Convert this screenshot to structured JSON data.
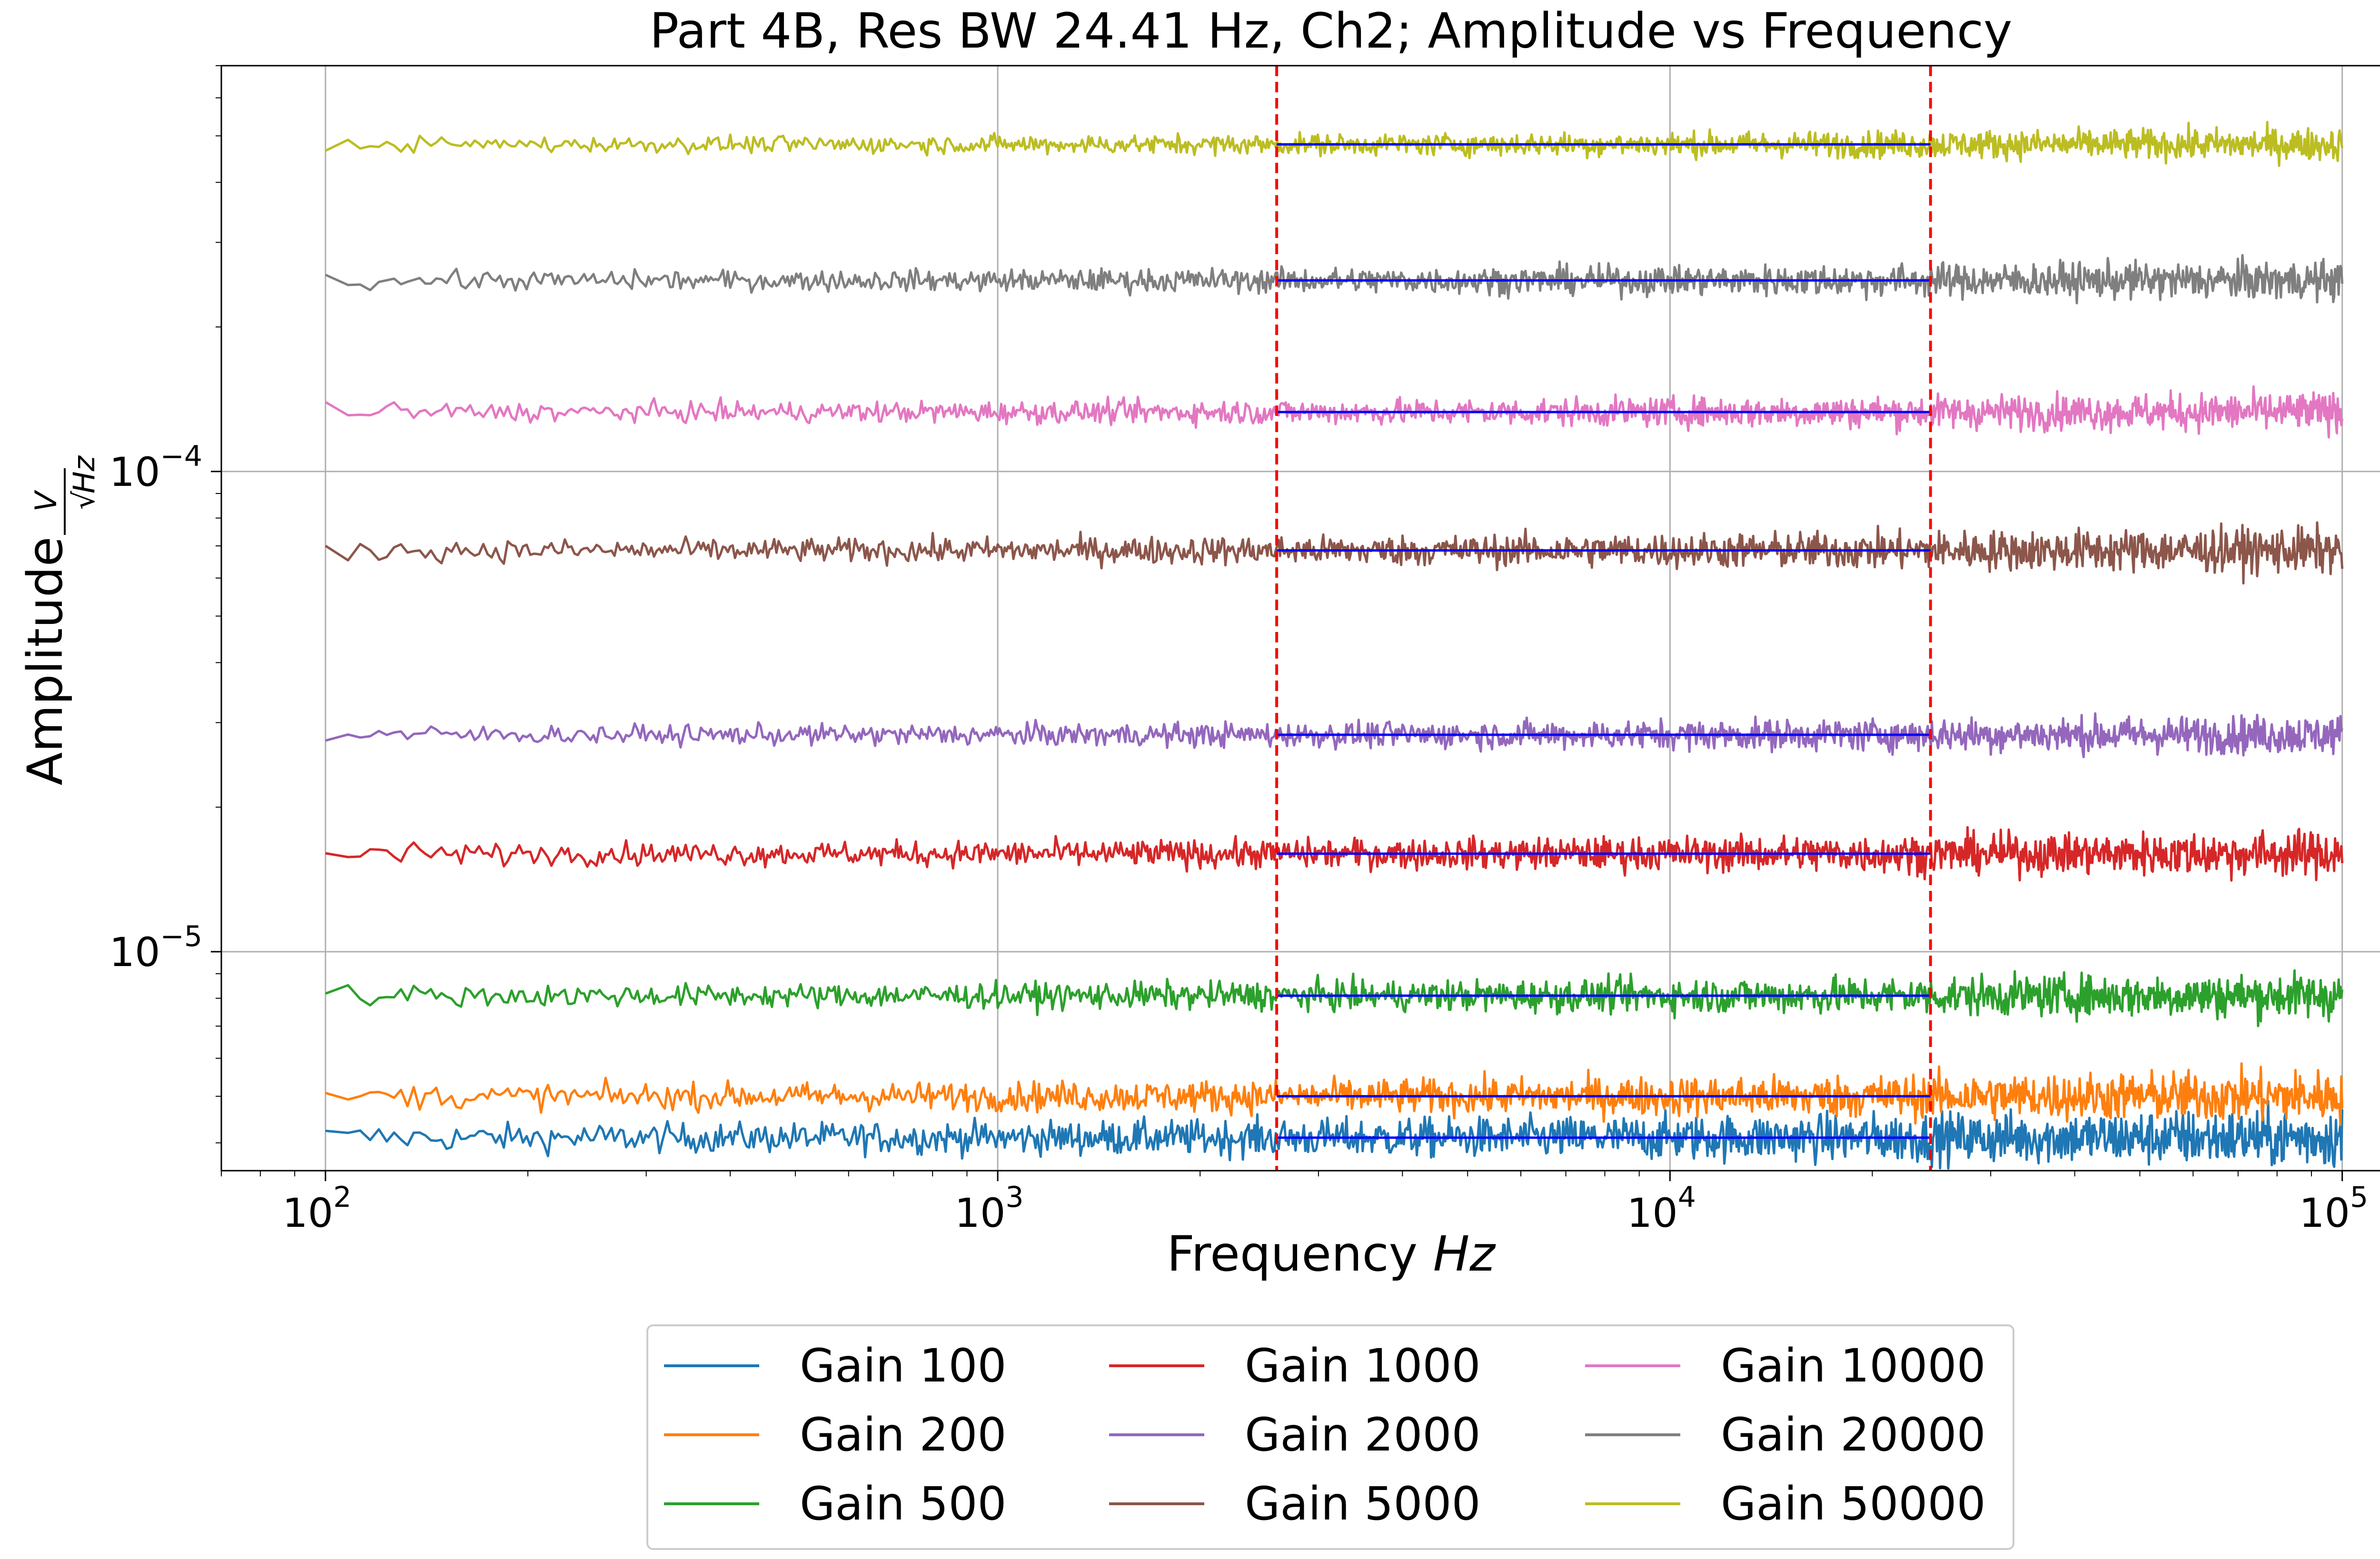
{
  "chart_data": {
    "type": "line",
    "title": "Part 4B, Res BW 24.41 Hz, Ch2; Amplitude vs Frequency",
    "xlabel": "Frequency",
    "xlabel_unit": "Hz",
    "ylabel": "Amplitude",
    "ylabel_unit_numerator": "V",
    "ylabel_unit_denominator": "Hz",
    "x_scale": "log",
    "y_scale": "log",
    "xlim": [
      70,
      140000
    ],
    "ylim": [
      3.5e-06,
      0.0007
    ],
    "x_ticks": [
      {
        "value": 100,
        "base": "10",
        "exp": "2"
      },
      {
        "value": 1000,
        "base": "10",
        "exp": "3"
      },
      {
        "value": 10000,
        "base": "10",
        "exp": "4"
      },
      {
        "value": 100000,
        "base": "10",
        "exp": "5"
      }
    ],
    "y_ticks": [
      {
        "value": 1e-05,
        "base": "10",
        "exp": "−5"
      },
      {
        "value": 0.0001,
        "base": "10",
        "exp": "−4"
      }
    ],
    "grid": true,
    "legend_position": "bottom-center",
    "x_range": [
      100,
      100000
    ],
    "vlines": [
      {
        "x": 2600,
        "color": "#ff0000",
        "style": "dashed"
      },
      {
        "x": 24410,
        "color": "#ff0000",
        "style": "dashed"
      }
    ],
    "fit_color": "#0000ff",
    "fit_range": [
      2600,
      24410
    ],
    "series": [
      {
        "name": "Gain 100",
        "color": "#1f77b4",
        "level": 4.1e-06,
        "fit": 4.1e-06,
        "noise": 0.045
      },
      {
        "name": "Gain 200",
        "color": "#ff7f0e",
        "level": 5e-06,
        "fit": 5e-06,
        "noise": 0.04
      },
      {
        "name": "Gain 500",
        "color": "#2ca02c",
        "level": 8.1e-06,
        "fit": 8.1e-06,
        "noise": 0.035
      },
      {
        "name": "Gain 1000",
        "color": "#d62728",
        "level": 1.6e-05,
        "fit": 1.6e-05,
        "noise": 0.035
      },
      {
        "name": "Gain 2000",
        "color": "#9467bd",
        "level": 2.83e-05,
        "fit": 2.83e-05,
        "noise": 0.03
      },
      {
        "name": "Gain 5000",
        "color": "#8c564b",
        "level": 6.85e-05,
        "fit": 6.85e-05,
        "noise": 0.035
      },
      {
        "name": "Gain 10000",
        "color": "#e377c2",
        "level": 0.000133,
        "fit": 0.000133,
        "noise": 0.03
      },
      {
        "name": "Gain 20000",
        "color": "#7f7f7f",
        "level": 0.00025,
        "fit": 0.00025,
        "noise": 0.03
      },
      {
        "name": "Gain 50000",
        "color": "#bcbd22",
        "level": 0.00048,
        "fit": 0.00048,
        "noise": 0.025
      }
    ]
  }
}
